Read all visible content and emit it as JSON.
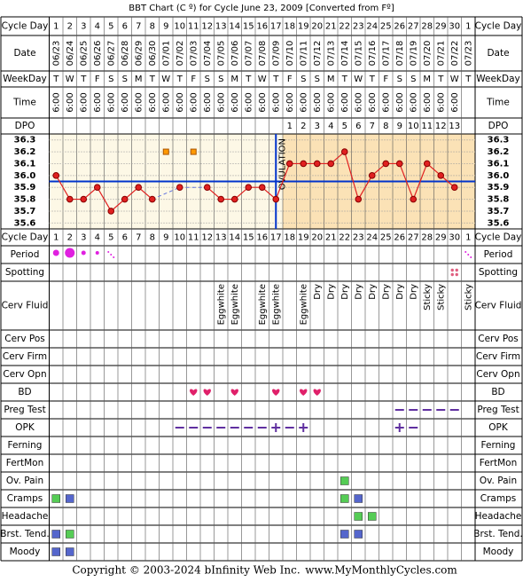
{
  "header": {
    "title": "BBT Chart (C º) for Cycle June 23, 2009  [Converted from Fº]"
  },
  "labels": {
    "cycle_day": "Cycle Day",
    "date": "Date",
    "weekday": "WeekDay",
    "time": "Time",
    "dpo": "DPO"
  },
  "lower_rows": [
    "Period",
    "Spotting",
    "Cerv Fluid",
    "Cerv Pos",
    "Cerv Firm",
    "Cerv Opn",
    "BD",
    "Preg Test",
    "OPK",
    "Ferning",
    "FertMon",
    "Ov. Pain",
    "Cramps",
    "Headache",
    "Brst. Tend.",
    "Moody"
  ],
  "table": {
    "cycle_days": [
      1,
      2,
      3,
      4,
      5,
      6,
      7,
      8,
      9,
      10,
      11,
      12,
      13,
      14,
      15,
      16,
      17,
      18,
      19,
      20,
      21,
      22,
      23,
      24,
      25,
      26,
      27,
      28,
      29,
      30,
      1
    ],
    "dates": [
      "06/23",
      "06/24",
      "06/25",
      "06/26",
      "06/27",
      "06/28",
      "06/29",
      "06/30",
      "07/01",
      "07/02",
      "07/03",
      "07/04",
      "07/05",
      "07/06",
      "07/07",
      "07/08",
      "07/09",
      "07/10",
      "07/11",
      "07/12",
      "07/13",
      "07/14",
      "07/15",
      "07/16",
      "07/17",
      "07/18",
      "07/19",
      "07/20",
      "07/21",
      "07/22",
      "07/23"
    ],
    "weekdays": [
      "T",
      "W",
      "T",
      "F",
      "S",
      "S",
      "M",
      "T",
      "W",
      "T",
      "F",
      "S",
      "S",
      "M",
      "T",
      "W",
      "T",
      "F",
      "S",
      "S",
      "M",
      "T",
      "W",
      "T",
      "F",
      "S",
      "S",
      "M",
      "T",
      "W",
      "T"
    ],
    "times": [
      "6:00",
      "6:00",
      "6:00",
      "6:00",
      "6:00",
      "6:00",
      "6:00",
      "6:00",
      "6:00",
      "6:00",
      "6:00",
      "6:00",
      "6:00",
      "6:00",
      "6:00",
      "6:00",
      "6:00",
      "6:00",
      "6:00",
      "6:00",
      "6:00",
      "6:00",
      "6:00",
      "6:00",
      "6:00",
      "6:00",
      "6:00",
      "6:00",
      "6:00",
      "6:00",
      null
    ],
    "dpo": [
      null,
      null,
      null,
      null,
      null,
      null,
      null,
      null,
      null,
      null,
      null,
      null,
      null,
      null,
      null,
      null,
      null,
      1,
      2,
      3,
      4,
      5,
      6,
      7,
      8,
      9,
      10,
      11,
      12,
      13,
      null
    ],
    "cerv_fluid": [
      null,
      null,
      null,
      null,
      null,
      null,
      null,
      null,
      null,
      null,
      null,
      null,
      "Eggwhite",
      "Eggwhite",
      null,
      "Eggwhite",
      "Eggwhite",
      null,
      "Eggwhite",
      "Dry",
      "Dry",
      "Dry",
      "Dry",
      "Dry",
      "Dry",
      "Dry",
      "Dry",
      "Sticky",
      "Sticky",
      null,
      "Sticky"
    ]
  },
  "chart_data": {
    "type": "line",
    "values": [
      36.0,
      35.8,
      35.8,
      35.9,
      35.7,
      35.8,
      35.9,
      35.8,
      null,
      35.9,
      null,
      35.9,
      35.8,
      35.8,
      35.9,
      35.9,
      35.8,
      36.1,
      36.1,
      36.1,
      36.1,
      36.2,
      35.8,
      36.0,
      36.1,
      36.1,
      35.8,
      36.1,
      36.0,
      35.9,
      null
    ],
    "color": "#e02020",
    "ylim": [
      35.55,
      36.35
    ],
    "yticks": [
      36.3,
      36.2,
      36.1,
      {
        "value": 36,
        "label": "36.0"
      },
      35.9,
      35.8,
      35.7,
      35.6
    ],
    "coverline": 35.95,
    "annotation": "OVULATION",
    "grid": true
  },
  "footer": {
    "copyright": "Copyright © 2003-2024 bInfinity Web Inc.",
    "site": "www.MyMonthlyCycles.com"
  }
}
